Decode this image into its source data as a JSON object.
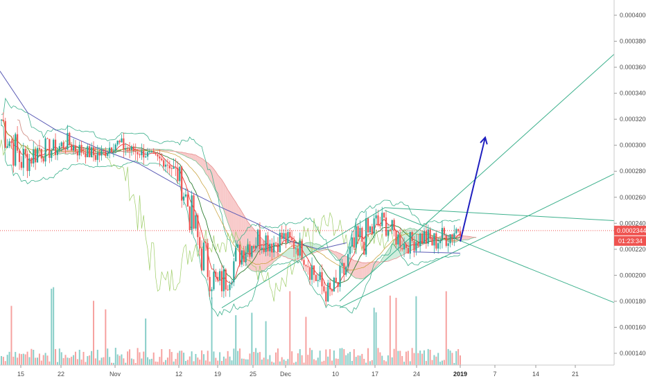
{
  "chart_data": {
    "type": "candlestick",
    "y_axis": {
      "ylim": [
        0.000132,
        0.000417
      ],
      "ticks": [
        "0.0001400",
        "0.0001600",
        "0.0001800",
        "0.0002000",
        "0.0002200",
        "0.0002400",
        "0.0002600",
        "0.0002800",
        "0.0003000",
        "0.0003200",
        "0.0003400",
        "0.0003600",
        "0.0003800",
        "0.0004000"
      ]
    },
    "x_axis": {
      "ticks": [
        {
          "label": "15",
          "bold": false
        },
        {
          "label": "22",
          "bold": false
        },
        {
          "label": "Nov",
          "bold": false
        },
        {
          "label": "12",
          "bold": false
        },
        {
          "label": "19",
          "bold": false
        },
        {
          "label": "25",
          "bold": false
        },
        {
          "label": "Dec",
          "bold": false
        },
        {
          "label": "10",
          "bold": false
        },
        {
          "label": "17",
          "bold": false
        },
        {
          "label": "24",
          "bold": false
        },
        {
          "label": "2019",
          "bold": true
        },
        {
          "label": "7",
          "bold": false
        },
        {
          "label": "14",
          "bold": false
        },
        {
          "label": "21",
          "bold": false
        }
      ]
    },
    "last_price": "0.0002344",
    "countdown": "01:23:34",
    "price_line_value": 0.0002344,
    "colors": {
      "up": "#26a69a",
      "down": "#ef5350",
      "channel": "#3cb08c",
      "arrow": "#1f1fbf",
      "ma_slow": "#5b5bb5",
      "cloud_bear": "#f7c1c1",
      "cloud_bull": "#c7ead6",
      "badge": "#ef5350"
    },
    "price_path": [
      [
        0.0003,
        0.00034
      ],
      [
        0.000285,
        0.00032
      ],
      [
        0.000273,
        0.000305
      ],
      [
        0.00028,
        0.0003
      ],
      [
        0.000285,
        0.00031
      ],
      [
        0.000288,
        0.000305
      ],
      [
        0.00029,
        0.000305
      ],
      [
        0.000295,
        0.00031
      ],
      [
        0.00029,
        0.000305
      ],
      [
        0.00029,
        0.0003
      ],
      [
        0.000285,
        0.0003
      ],
      [
        0.00029,
        0.000298
      ],
      [
        0.000295,
        0.00031
      ],
      [
        0.000293,
        0.000305
      ],
      [
        0.000292,
        0.0003
      ],
      [
        0.00029,
        0.000298
      ],
      [
        0.000288,
        0.000296
      ],
      [
        0.000285,
        0.000292
      ],
      [
        0.00028,
        0.00029
      ],
      [
        0.000265,
        0.000285
      ],
      [
        0.000235,
        0.00027
      ],
      [
        0.000205,
        0.000245
      ],
      [
        0.00019,
        0.000225
      ],
      [
        0.000178,
        0.000205
      ],
      [
        0.000185,
        0.00021
      ],
      [
        0.0002,
        0.000225
      ],
      [
        0.00021,
        0.000235
      ],
      [
        0.000215,
        0.00024
      ],
      [
        0.000218,
        0.00024
      ],
      [
        0.000215,
        0.000235
      ],
      [
        0.00022,
        0.000238
      ],
      [
        0.000218,
        0.000232
      ],
      [
        0.000212,
        0.000228
      ],
      [
        0.000195,
        0.00022
      ],
      [
        0.00018,
        0.000205
      ],
      [
        0.000176,
        0.000195
      ],
      [
        0.00018,
        0.000205
      ],
      [
        0.000195,
        0.000225
      ],
      [
        0.00021,
        0.00024
      ],
      [
        0.000215,
        0.000245
      ],
      [
        0.000225,
        0.000252
      ],
      [
        0.00023,
        0.00025
      ],
      [
        0.000222,
        0.00024
      ],
      [
        0.000215,
        0.000232
      ],
      [
        0.000218,
        0.000235
      ],
      [
        0.00022,
        0.00024
      ],
      [
        0.000215,
        0.000235
      ],
      [
        0.00022,
        0.000238
      ],
      [
        0.000222,
        0.000242
      ],
      [
        0.00023,
        0.000246
      ]
    ]
  }
}
